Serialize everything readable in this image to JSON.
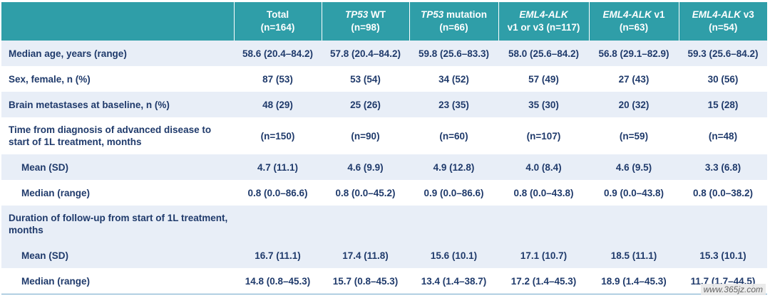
{
  "header": {
    "c1": {
      "line1": "Total",
      "line2": "(n=164)"
    },
    "c2": {
      "italic": "TP53",
      "rest": " WT",
      "line2": "(n=98)"
    },
    "c3": {
      "italic": "TP53",
      "rest": " mutation",
      "line2": "(n=66)"
    },
    "c4": {
      "italic": "EML4-ALK",
      "rest": "",
      "line2": "v1 or v3 (n=117)"
    },
    "c5": {
      "italic": "EML4-ALK",
      "rest": " v1",
      "line2": "(n=63)"
    },
    "c6": {
      "italic": "EML4-ALK",
      "rest": " v3",
      "line2": "(n=54)"
    }
  },
  "rows": [
    {
      "label": "Median age, years (range)",
      "values": [
        "58.6 (20.4–84.2)",
        "57.8 (20.4–84.2)",
        "59.8 (25.6–83.3)",
        "58.0 (25.6–84.2)",
        "56.8 (29.1–82.9)",
        "59.3 (25.6–84.2)"
      ]
    },
    {
      "label": "Sex, female, n (%)",
      "values": [
        "87 (53)",
        "53 (54)",
        "34 (52)",
        "57 (49)",
        "27 (43)",
        "30 (56)"
      ]
    },
    {
      "label": "Brain metastases at baseline, n (%)",
      "values": [
        "48 (29)",
        "25 (26)",
        "23 (35)",
        "35 (30)",
        "20 (32)",
        "15 (28)"
      ]
    },
    {
      "label": "Time from diagnosis of advanced disease to start of 1L treatment, months",
      "values": [
        "(n=150)",
        "(n=90)",
        "(n=60)",
        "(n=107)",
        "(n=59)",
        "(n=48)"
      ]
    },
    {
      "label": "Mean (SD)",
      "values": [
        "4.7 (11.1)",
        "4.6 (9.9)",
        "4.9 (12.8)",
        "4.0 (8.4)",
        "4.6 (9.5)",
        "3.3 (6.8)"
      ]
    },
    {
      "label": "Median (range)",
      "values": [
        "0.8 (0.0–86.6)",
        "0.8 (0.0–45.2)",
        "0.9 (0.0–86.6)",
        "0.8 (0.0–43.8)",
        "0.9 (0.0–43.8)",
        "0.8 (0.0–38.2)"
      ]
    },
    {
      "label": "Duration of follow-up from start of 1L treatment, months",
      "values": [
        "",
        "",
        "",
        "",
        "",
        ""
      ]
    },
    {
      "label": "Mean (SD)",
      "values": [
        "16.7 (11.1)",
        "17.4 (11.8)",
        "15.6 (10.1)",
        "17.1 (10.7)",
        "18.5 (11.1)",
        "15.3 (10.1)"
      ]
    },
    {
      "label": "Median (range)",
      "values": [
        "14.8 (0.8–45.3)",
        "15.7 (0.8–45.3)",
        "13.4 (1.4–38.7)",
        "17.2 (1.4–45.3)",
        "18.9 (1.4–45.3)",
        "11.7 (1.7–44.5)"
      ]
    }
  ],
  "watermark": "www.365jz.com"
}
